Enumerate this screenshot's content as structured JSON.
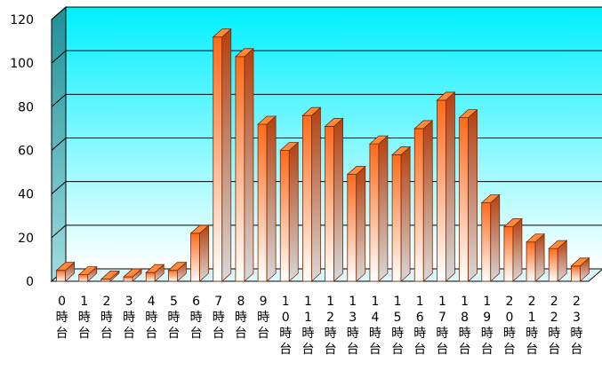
{
  "chart_data": {
    "type": "bar",
    "title": "",
    "xlabel": "",
    "ylabel": "",
    "ylim": [
      0,
      120
    ],
    "yticks": [
      "0",
      "20",
      "40",
      "60",
      "80",
      "100",
      "120"
    ],
    "grid": true,
    "categories": [
      "0時台",
      "1時台",
      "2時台",
      "3時台",
      "4時台",
      "5時台",
      "6時台",
      "7時台",
      "8時台",
      "9時台",
      "10時台",
      "11時台",
      "12時台",
      "13時台",
      "14時台",
      "15時台",
      "16時台",
      "17時台",
      "18時台",
      "19時台",
      "20時台",
      "21時台",
      "22時台",
      "23時台"
    ],
    "values": [
      5,
      3,
      1,
      2,
      4,
      5,
      22,
      112,
      103,
      72,
      60,
      76,
      71,
      49,
      63,
      58,
      70,
      83,
      75,
      36,
      25,
      18,
      15,
      7
    ],
    "colors": {
      "bar_top": "#ff7b2a",
      "bar_bottom": "#ffffff",
      "bar_side": "#a93a10",
      "bar_cap": "#ff8a3a",
      "wall_top": "#00f0ff",
      "wall_bottom": "#ffffff",
      "side_wall": "#2aa1a8",
      "grid": "#000000"
    }
  }
}
